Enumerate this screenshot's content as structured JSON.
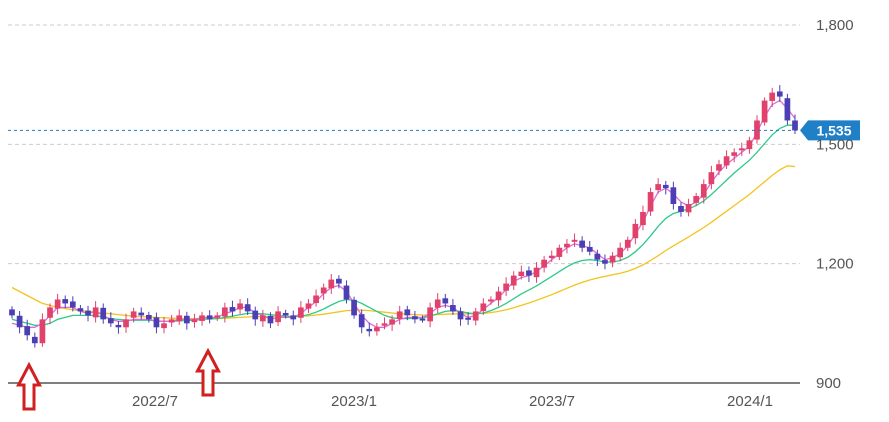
{
  "colors": {
    "up_candle": "#e0426b",
    "down_candle": "#4b3fb3",
    "ma_short": "#e06bd8",
    "ma_mid": "#2ec98a",
    "ma_long": "#f2c41c",
    "price_line": "#1f7fc7",
    "badge": "#1f7fc7",
    "grid": "#cccccc",
    "arrow": "#d02020"
  },
  "chart_data": {
    "type": "candlestick",
    "y_ticks": [
      "1,800",
      "1,500",
      "1,200",
      "900"
    ],
    "y_tick_values": [
      1800,
      1500,
      1200,
      900
    ],
    "x_ticks": [
      "2022/7",
      "2023/1",
      "2023/7",
      "2024/1"
    ],
    "ylim": [
      900,
      1800
    ],
    "grid": "horizontal dashed",
    "current_price_label": "1,535",
    "current_price": 1535,
    "annotations": [
      "up-arrow at first week (~2022/1)",
      "up-arrow at ~2022/10"
    ],
    "weekly_ohlc_close_approx": [
      1070,
      1040,
      1020,
      1000,
      1060,
      1090,
      1110,
      1100,
      1090,
      1080,
      1070,
      1090,
      1060,
      1050,
      1040,
      1060,
      1080,
      1070,
      1060,
      1040,
      1050,
      1060,
      1070,
      1050,
      1060,
      1070,
      1060,
      1070,
      1090,
      1080,
      1100,
      1080,
      1060,
      1070,
      1050,
      1080,
      1070,
      1060,
      1090,
      1100,
      1120,
      1140,
      1160,
      1150,
      1110,
      1070,
      1040,
      1030,
      1040,
      1050,
      1060,
      1080,
      1070,
      1060,
      1060,
      1090,
      1110,
      1100,
      1080,
      1060,
      1060,
      1080,
      1100,
      1110,
      1130,
      1150,
      1170,
      1180,
      1170,
      1190,
      1210,
      1220,
      1240,
      1250,
      1260,
      1240,
      1230,
      1210,
      1200,
      1220,
      1240,
      1260,
      1300,
      1330,
      1380,
      1400,
      1390,
      1350,
      1330,
      1350,
      1370,
      1400,
      1430,
      1450,
      1470,
      1480,
      1490,
      1510,
      1560,
      1610,
      1630,
      1620,
      1560,
      1535
    ],
    "ma_short_approx": [
      1050,
      1045,
      1040,
      1040,
      1050,
      1070,
      1090,
      1090,
      1090,
      1080,
      1075,
      1080,
      1070,
      1060,
      1055,
      1055,
      1060,
      1060,
      1060,
      1055,
      1055,
      1055,
      1060,
      1060,
      1060,
      1065,
      1065,
      1065,
      1075,
      1080,
      1090,
      1090,
      1075,
      1070,
      1060,
      1065,
      1065,
      1065,
      1075,
      1090,
      1105,
      1125,
      1140,
      1145,
      1130,
      1100,
      1070,
      1050,
      1040,
      1040,
      1050,
      1060,
      1065,
      1065,
      1065,
      1075,
      1090,
      1095,
      1090,
      1075,
      1065,
      1070,
      1085,
      1100,
      1115,
      1135,
      1155,
      1165,
      1170,
      1180,
      1195,
      1210,
      1225,
      1240,
      1250,
      1245,
      1240,
      1225,
      1210,
      1215,
      1225,
      1245,
      1275,
      1305,
      1345,
      1380,
      1390,
      1375,
      1355,
      1345,
      1355,
      1375,
      1405,
      1430,
      1450,
      1465,
      1480,
      1495,
      1530,
      1570,
      1600,
      1610,
      1590,
      1565
    ],
    "ma_mid_approx": [
      1060,
      1055,
      1050,
      1045,
      1045,
      1050,
      1060,
      1065,
      1070,
      1070,
      1070,
      1070,
      1065,
      1062,
      1060,
      1058,
      1058,
      1058,
      1058,
      1056,
      1055,
      1055,
      1056,
      1057,
      1058,
      1060,
      1061,
      1062,
      1065,
      1068,
      1072,
      1075,
      1075,
      1074,
      1072,
      1070,
      1068,
      1067,
      1068,
      1072,
      1078,
      1086,
      1096,
      1105,
      1110,
      1108,
      1100,
      1090,
      1080,
      1070,
      1064,
      1062,
      1062,
      1063,
      1064,
      1068,
      1074,
      1080,
      1082,
      1080,
      1076,
      1074,
      1076,
      1082,
      1090,
      1100,
      1112,
      1124,
      1134,
      1144,
      1156,
      1168,
      1180,
      1192,
      1202,
      1208,
      1210,
      1208,
      1204,
      1204,
      1208,
      1216,
      1230,
      1248,
      1270,
      1294,
      1314,
      1326,
      1332,
      1338,
      1346,
      1358,
      1374,
      1392,
      1410,
      1428,
      1444,
      1460,
      1480,
      1502,
      1524,
      1540,
      1548,
      1548
    ],
    "ma_long_approx": [
      1140,
      1130,
      1120,
      1110,
      1100,
      1095,
      1090,
      1087,
      1084,
      1082,
      1080,
      1078,
      1076,
      1074,
      1072,
      1070,
      1068,
      1067,
      1066,
      1065,
      1064,
      1063,
      1062,
      1062,
      1062,
      1062,
      1062,
      1062,
      1063,
      1064,
      1065,
      1066,
      1067,
      1067,
      1067,
      1067,
      1067,
      1067,
      1068,
      1069,
      1071,
      1073,
      1076,
      1079,
      1082,
      1083,
      1083,
      1082,
      1080,
      1078,
      1076,
      1074,
      1073,
      1072,
      1071,
      1071,
      1072,
      1073,
      1074,
      1074,
      1074,
      1074,
      1075,
      1077,
      1080,
      1084,
      1089,
      1095,
      1101,
      1108,
      1115,
      1122,
      1130,
      1138,
      1146,
      1153,
      1159,
      1164,
      1168,
      1172,
      1176,
      1181,
      1188,
      1197,
      1208,
      1220,
      1233,
      1245,
      1256,
      1267,
      1279,
      1291,
      1304,
      1318,
      1332,
      1346,
      1360,
      1374,
      1390,
      1406,
      1422,
      1436,
      1446,
      1444
    ]
  }
}
